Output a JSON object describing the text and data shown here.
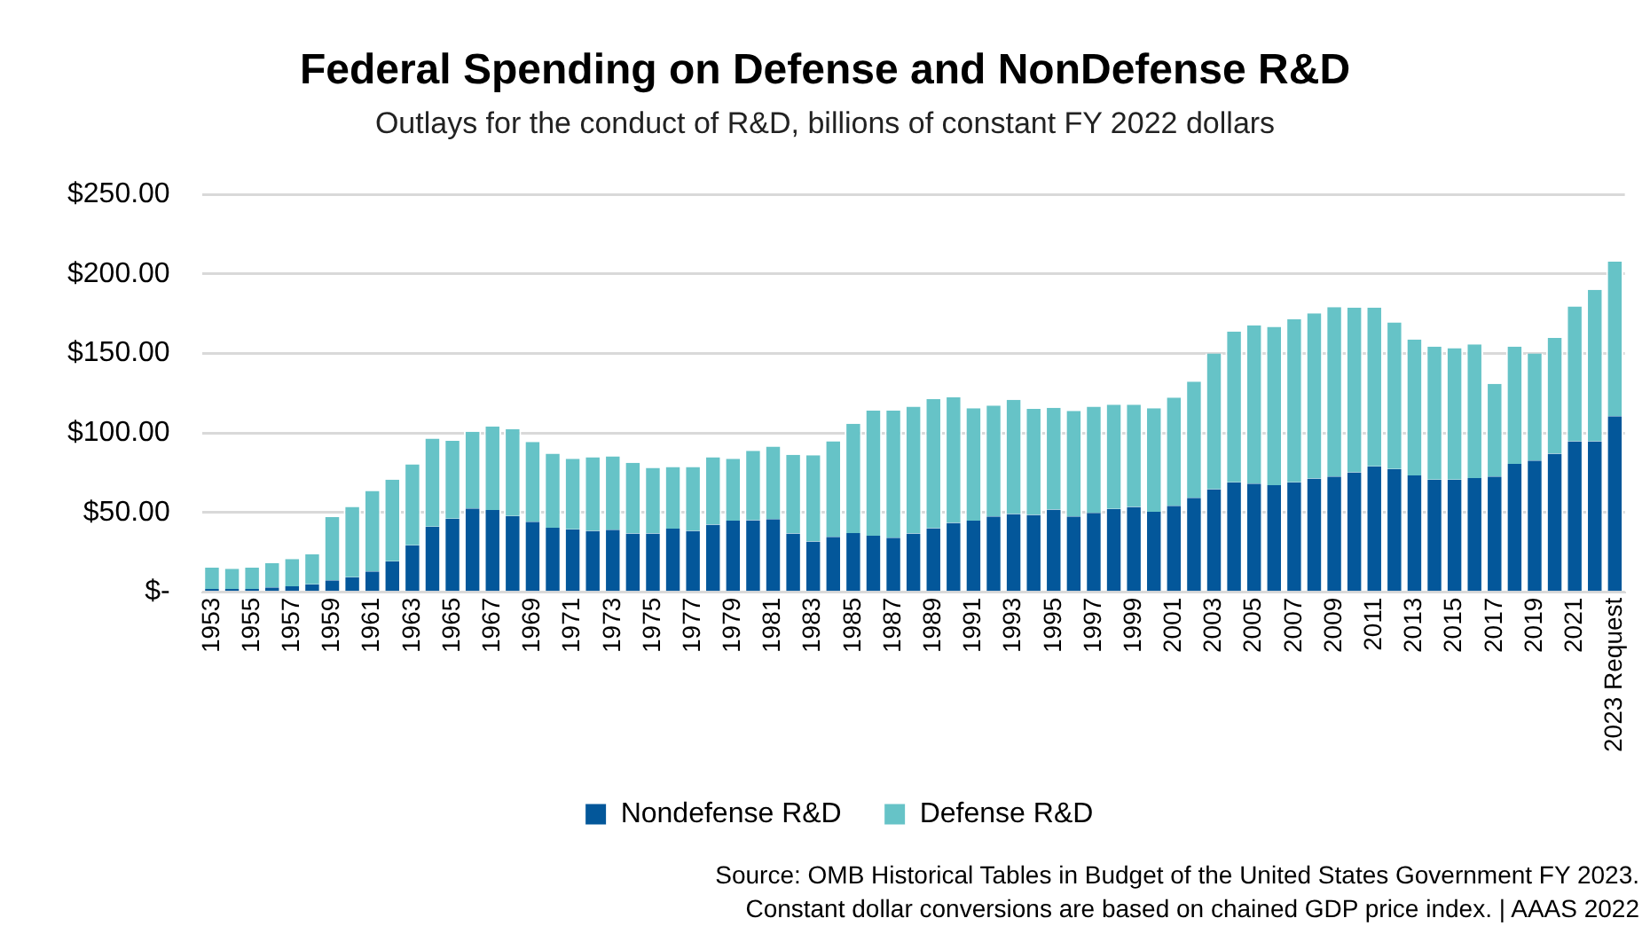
{
  "chart_data": {
    "type": "bar",
    "stacked": true,
    "title": "Federal Spending on Defense and NonDefense R&D",
    "subtitle": "Outlays for the conduct of R&D, billions of constant FY 2022 dollars",
    "categories": [
      "1953",
      null,
      "1955",
      null,
      "1957",
      null,
      "1959",
      null,
      "1961",
      null,
      "1963",
      null,
      "1965",
      null,
      "1967",
      null,
      "1969",
      null,
      "1971",
      null,
      "1973",
      null,
      "1975",
      null,
      "1977",
      null,
      "1979",
      null,
      "1981",
      null,
      "1983",
      null,
      "1985",
      null,
      "1987",
      null,
      "1989",
      null,
      "1991",
      null,
      "1993",
      null,
      "1995",
      null,
      "1997",
      null,
      "1999",
      null,
      "2001",
      null,
      "2003",
      null,
      "2005",
      null,
      "2007",
      null,
      "2009",
      null,
      "2011",
      null,
      "2013",
      null,
      "2015",
      null,
      "2017",
      null,
      "2019",
      null,
      "2021",
      null,
      "2023 Request"
    ],
    "series": [
      {
        "name": "Nondefense R&D",
        "color": "#03579a",
        "values": [
          2,
          2,
          2,
          3,
          3.7,
          5,
          7.4,
          9.4,
          13,
          19.4,
          29.5,
          41.2,
          46.2,
          52.6,
          51.6,
          47.9,
          44.2,
          40.5,
          39.5,
          38.5,
          39.2,
          36.9,
          36.9,
          39.9,
          38.5,
          42.5,
          44.9,
          45.2,
          45.9,
          36.9,
          31.8,
          34.8,
          37.2,
          35.5,
          34.2,
          36.9,
          40.2,
          43.6,
          44.9,
          47.6,
          49.2,
          48.6,
          51.9,
          47.6,
          49.9,
          52.3,
          53.6,
          50.6,
          54.3,
          59.3,
          64.7,
          69,
          68.3,
          67.3,
          69,
          71.4,
          72.7,
          75.4,
          79.1,
          77.4,
          73.4,
          70.7,
          70.7,
          71.7,
          72.7,
          80.7,
          82.7,
          87.1,
          94.8,
          94.8,
          110.6
        ]
      },
      {
        "name": "Defense R&D",
        "color": "#66c3c7",
        "values": [
          13.4,
          12.7,
          13.4,
          15.4,
          17.1,
          18.8,
          39.8,
          44.2,
          50.7,
          51.3,
          50.9,
          55.3,
          48.9,
          48.2,
          52.6,
          54.6,
          50.3,
          46.6,
          44.3,
          46.3,
          46.2,
          44.5,
          41.2,
          38.8,
          40.2,
          42.3,
          38.9,
          43.6,
          45.6,
          49.5,
          54.3,
          60,
          68.7,
          78.7,
          80,
          79.7,
          81.1,
          79,
          70.7,
          69.7,
          71.7,
          66.6,
          64,
          66.3,
          66.7,
          65.6,
          64.3,
          65,
          68,
          73,
          85.4,
          94.8,
          99.5,
          99.5,
          102.5,
          103.8,
          106.5,
          103.5,
          99.8,
          92.1,
          85.4,
          83.7,
          82.7,
          84.1,
          58.3,
          73.7,
          67.4,
          72.7,
          84.8,
          95.2,
          97.1
        ]
      }
    ],
    "ylim": [
      0,
      250
    ],
    "yticks": [
      {
        "value": 0,
        "label": "$-"
      },
      {
        "value": 50,
        "label": "$50.00"
      },
      {
        "value": 100,
        "label": "$100.00"
      },
      {
        "value": 150,
        "label": "$150.00"
      },
      {
        "value": 200,
        "label": "$200.00"
      },
      {
        "value": 250,
        "label": "$250.00"
      }
    ],
    "grid": "y",
    "legend": "bottom",
    "annotations": [
      "Source: OMB Historical Tables in Budget of the United States Government FY 2023.",
      "Constant dollar conversions are based on chained GDP price index. | AAAS 2022"
    ]
  }
}
